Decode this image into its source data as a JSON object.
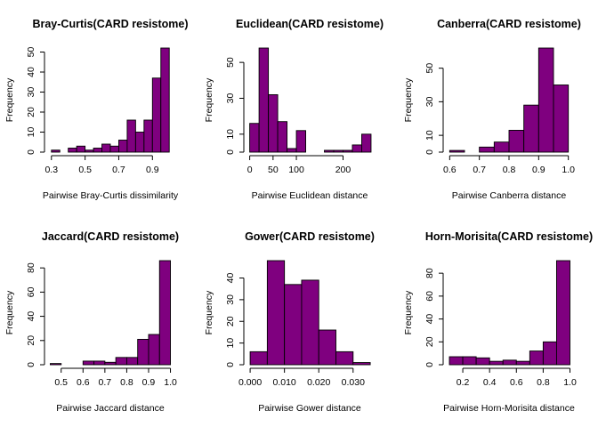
{
  "colors": {
    "bar_fill": "#7f007f",
    "bar_stroke": "#000000"
  },
  "chart_data": [
    {
      "type": "bar",
      "title": "Bray-Curtis(CARD resistome)",
      "xlabel": "Pairwise Bray-Curtis dissimilarity",
      "ylabel": "Frequency",
      "bin_edges": [
        0.3,
        0.35,
        0.4,
        0.45,
        0.5,
        0.55,
        0.6,
        0.65,
        0.7,
        0.75,
        0.8,
        0.85,
        0.9,
        0.95,
        1.0
      ],
      "values": [
        1,
        0,
        2,
        3,
        1,
        2,
        4,
        3,
        6,
        16,
        10,
        16,
        37,
        52
      ],
      "xlim": [
        0.28,
        1.02
      ],
      "ylim": [
        0,
        52
      ],
      "xticks": [
        0.3,
        0.5,
        0.7,
        0.9
      ],
      "xtick_labels": [
        "0.3",
        "0.5",
        "0.7",
        "0.9"
      ],
      "yticks": [
        0,
        10,
        20,
        30,
        40,
        50
      ],
      "ytick_labels": [
        "0",
        "10",
        "20",
        "30",
        "40",
        "50"
      ]
    },
    {
      "type": "bar",
      "title": "Euclidean(CARD resistome)",
      "xlabel": "Pairwise Euclidean distance",
      "ylabel": "Frequency",
      "bin_edges": [
        0,
        20,
        40,
        60,
        80,
        100,
        120,
        140,
        160,
        180,
        200,
        220,
        240,
        260
      ],
      "values": [
        16,
        58,
        32,
        17,
        2,
        12,
        0,
        0,
        1,
        1,
        1,
        4,
        10
      ],
      "xlim": [
        -5,
        262
      ],
      "ylim": [
        0,
        58
      ],
      "xticks": [
        0,
        50,
        100,
        200
      ],
      "xtick_labels": [
        "0",
        "50",
        "100",
        "200"
      ],
      "yticks": [
        0,
        10,
        30,
        50
      ],
      "ytick_labels": [
        "0",
        "10",
        "30",
        "50"
      ]
    },
    {
      "type": "bar",
      "title": "Canberra(CARD resistome)",
      "xlabel": "Pairwise Canberra distance",
      "ylabel": "Frequency",
      "bin_edges": [
        0.6,
        0.65,
        0.7,
        0.75,
        0.8,
        0.85,
        0.9,
        0.95,
        1.0
      ],
      "values": [
        1,
        0,
        3,
        6,
        13,
        28,
        62,
        40
      ],
      "xlim": [
        0.59,
        1.01
      ],
      "ylim": [
        0,
        62
      ],
      "xticks": [
        0.6,
        0.7,
        0.8,
        0.9,
        1.0
      ],
      "xtick_labels": [
        "0.6",
        "0.7",
        "0.8",
        "0.9",
        "1.0"
      ],
      "yticks": [
        0,
        10,
        30,
        50
      ],
      "ytick_labels": [
        "0",
        "10",
        "30",
        "50"
      ]
    },
    {
      "type": "bar",
      "title": "Jaccard(CARD resistome)",
      "xlabel": "Pairwise Jaccard distance",
      "ylabel": "Frequency",
      "bin_edges": [
        0.45,
        0.5,
        0.55,
        0.6,
        0.65,
        0.7,
        0.75,
        0.8,
        0.85,
        0.9,
        0.95,
        1.0
      ],
      "values": [
        1,
        0,
        0,
        3,
        3,
        2,
        6,
        6,
        21,
        25,
        86
      ],
      "xlim": [
        0.44,
        1.01
      ],
      "ylim": [
        0,
        86
      ],
      "xticks": [
        0.5,
        0.6,
        0.7,
        0.8,
        0.9,
        1.0
      ],
      "xtick_labels": [
        "0.5",
        "0.6",
        "0.7",
        "0.8",
        "0.9",
        "1.0"
      ],
      "yticks": [
        0,
        20,
        40,
        60,
        80
      ],
      "ytick_labels": [
        "0",
        "20",
        "40",
        "60",
        "80"
      ]
    },
    {
      "type": "bar",
      "title": "Gower(CARD resistome)",
      "xlabel": "Pairwise Gower distance",
      "ylabel": "Frequency",
      "bin_edges": [
        0.0,
        0.005,
        0.01,
        0.015,
        0.02,
        0.025,
        0.03,
        0.035
      ],
      "values": [
        6,
        48,
        37,
        39,
        16,
        6,
        1
      ],
      "xlim": [
        -0.0008,
        0.0355
      ],
      "ylim": [
        0,
        48
      ],
      "xticks": [
        0.0,
        0.01,
        0.02,
        0.03
      ],
      "xtick_labels": [
        "0.000",
        "0.010",
        "0.020",
        "0.030"
      ],
      "yticks": [
        0,
        10,
        20,
        30,
        40
      ],
      "ytick_labels": [
        "0",
        "10",
        "20",
        "30",
        "40"
      ]
    },
    {
      "type": "bar",
      "title": "Horn-Morisita(CARD resistome)",
      "xlabel": "Pairwise Horn-Morisita distance",
      "ylabel": "Frequency",
      "bin_edges": [
        0.1,
        0.2,
        0.3,
        0.4,
        0.5,
        0.6,
        0.7,
        0.8,
        0.9,
        1.0
      ],
      "values": [
        7,
        7,
        6,
        3,
        4,
        3,
        12,
        20,
        91
      ],
      "xlim": [
        0.08,
        1.01
      ],
      "ylim": [
        0,
        91
      ],
      "xticks": [
        0.2,
        0.4,
        0.6,
        0.8,
        1.0
      ],
      "xtick_labels": [
        "0.2",
        "0.4",
        "0.6",
        "0.8",
        "1.0"
      ],
      "yticks": [
        0,
        20,
        40,
        60,
        80
      ],
      "ytick_labels": [
        "0",
        "20",
        "40",
        "60",
        "80"
      ]
    }
  ]
}
